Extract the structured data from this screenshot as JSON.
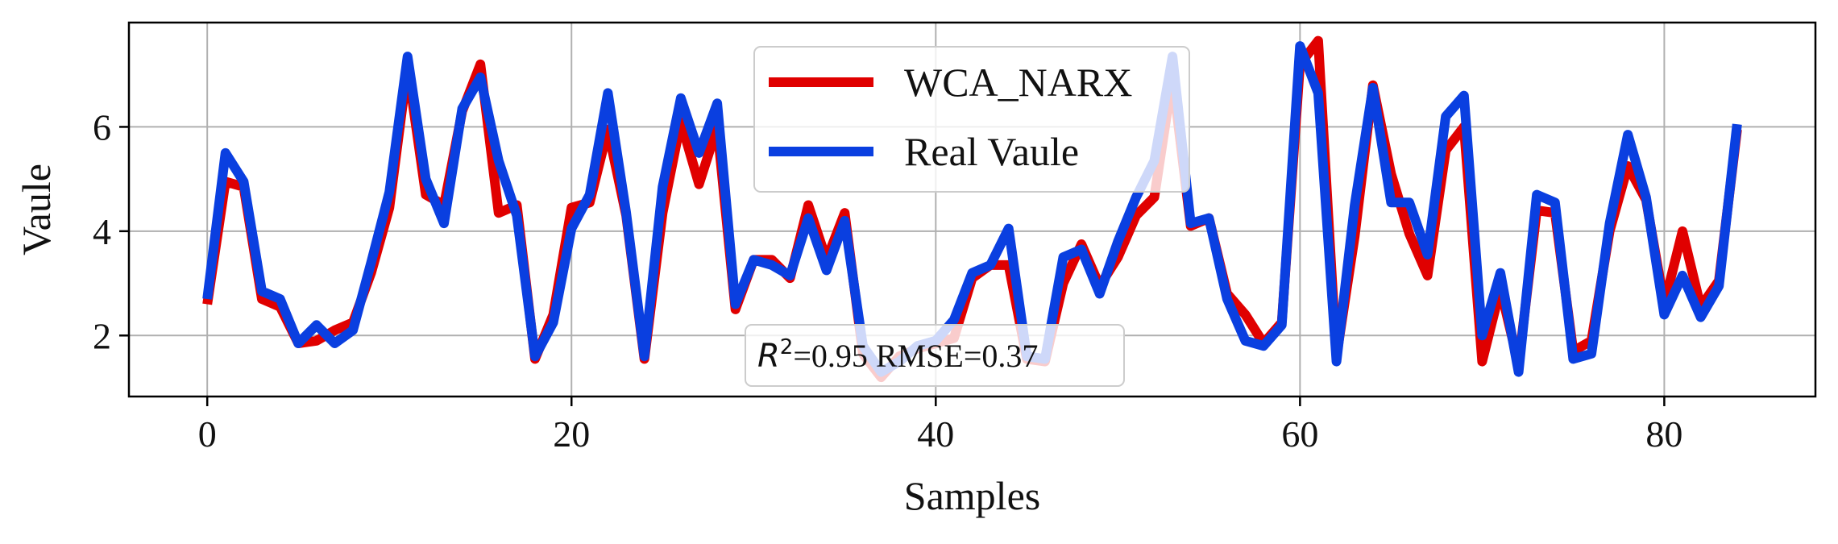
{
  "chart_data": {
    "type": "line",
    "title": "",
    "xlabel": "Samples",
    "ylabel": "Vaule",
    "xlim": [
      -4.3,
      88.3
    ],
    "ylim": [
      0.83,
      8.0
    ],
    "xticks": [
      0,
      20,
      40,
      60,
      80
    ],
    "yticks": [
      2,
      4,
      6
    ],
    "grid": true,
    "legend": "top-center",
    "annotation": {
      "r2_label": "R",
      "r2_sup": "2",
      "text": "=0.95 RMSE=0.37"
    },
    "x": [
      0,
      1,
      2,
      3,
      4,
      5,
      6,
      7,
      8,
      9,
      10,
      11,
      12,
      13,
      14,
      15,
      16,
      17,
      18,
      19,
      20,
      21,
      22,
      23,
      24,
      25,
      26,
      27,
      28,
      29,
      30,
      31,
      32,
      33,
      34,
      35,
      36,
      37,
      38,
      39,
      40,
      41,
      42,
      43,
      44,
      45,
      46,
      47,
      48,
      49,
      50,
      51,
      52,
      53,
      54,
      55,
      56,
      57,
      58,
      59,
      60,
      61,
      62,
      63,
      64,
      65,
      66,
      67,
      68,
      69,
      70,
      71,
      72,
      73,
      74,
      75,
      76,
      77,
      78,
      79,
      80,
      81,
      82,
      83,
      84
    ],
    "series": [
      {
        "name": "WCA_NARX",
        "color": "#e00000",
        "values": [
          2.6,
          4.95,
          4.85,
          2.7,
          2.55,
          1.85,
          1.9,
          2.1,
          2.25,
          3.2,
          4.45,
          7.15,
          4.7,
          4.5,
          6.3,
          7.2,
          4.35,
          4.5,
          1.55,
          2.4,
          4.45,
          4.55,
          5.95,
          4.3,
          1.55,
          4.35,
          6.1,
          4.9,
          6.0,
          2.5,
          3.45,
          3.45,
          3.1,
          4.5,
          3.45,
          4.35,
          1.65,
          1.2,
          1.6,
          1.75,
          1.85,
          1.95,
          3.1,
          3.35,
          3.35,
          1.55,
          1.5,
          3.0,
          3.75,
          2.95,
          3.5,
          4.3,
          4.65,
          6.95,
          4.1,
          4.25,
          2.8,
          2.4,
          1.85,
          2.25,
          7.2,
          7.65,
          1.6,
          3.9,
          6.8,
          5.1,
          3.95,
          3.15,
          5.55,
          6.0,
          1.5,
          2.9,
          1.45,
          4.4,
          4.35,
          1.7,
          1.9,
          4.0,
          5.25,
          4.6,
          2.6,
          4.0,
          2.55,
          3.05,
          5.95
        ]
      },
      {
        "name": "Real Vaule",
        "color": "#0a3fe0",
        "values": [
          2.7,
          5.5,
          4.95,
          2.85,
          2.7,
          1.85,
          2.2,
          1.85,
          2.1,
          3.4,
          4.75,
          7.35,
          5.0,
          4.15,
          6.35,
          6.95,
          5.35,
          4.3,
          1.6,
          2.25,
          4.05,
          4.7,
          6.65,
          4.35,
          1.6,
          4.85,
          6.55,
          5.5,
          6.45,
          2.6,
          3.45,
          3.35,
          3.15,
          4.25,
          3.25,
          4.2,
          1.8,
          1.3,
          1.5,
          1.8,
          1.9,
          2.3,
          3.2,
          3.35,
          4.05,
          1.6,
          1.55,
          3.5,
          3.65,
          2.8,
          3.8,
          4.65,
          5.35,
          7.35,
          4.15,
          4.25,
          2.7,
          1.9,
          1.8,
          2.2,
          7.55,
          6.65,
          1.5,
          4.5,
          6.75,
          4.55,
          4.55,
          3.55,
          6.2,
          6.6,
          2.0,
          3.2,
          1.3,
          4.7,
          4.55,
          1.55,
          1.65,
          4.15,
          5.85,
          4.65,
          2.4,
          3.15,
          2.35,
          2.95,
          6.05
        ]
      }
    ]
  }
}
